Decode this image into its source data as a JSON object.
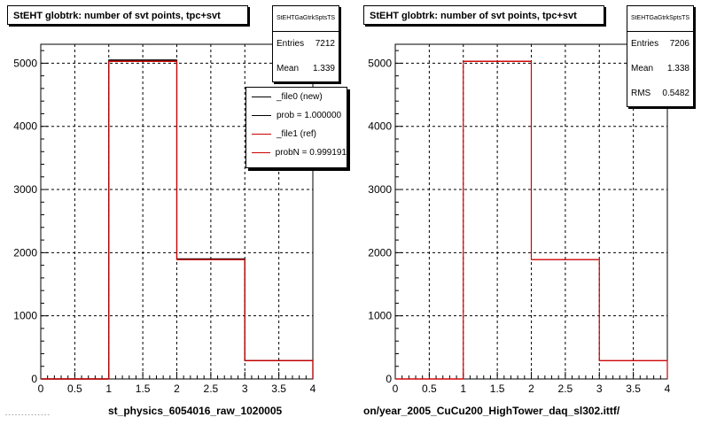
{
  "chart_data": [
    {
      "type": "bar",
      "title": "StEHT globtrk: number of svt points, tpc+svt",
      "xlabel": "st_physics_6054016_raw_1020005",
      "ylabel": "",
      "xlim": [
        0,
        4
      ],
      "ylim": [
        0,
        5300
      ],
      "grid": true,
      "x_ticks": [
        "0",
        "0.5",
        "1",
        "1.5",
        "2",
        "2.5",
        "3",
        "3.5",
        "4"
      ],
      "y_ticks": [
        "0",
        "1000",
        "2000",
        "3000",
        "4000",
        "5000"
      ],
      "bin_edges": [
        0,
        1,
        2,
        3,
        4
      ],
      "series": [
        {
          "name": "_file0 (new)",
          "color": "#000000",
          "values": [
            0,
            5050,
            1900,
            290
          ]
        },
        {
          "name": "_file1 (ref)",
          "color": "#cc0000",
          "values": [
            0,
            5030,
            1890,
            290
          ]
        }
      ],
      "stats": {
        "name": "StEHTGaGtrkSptsTS",
        "rows": [
          {
            "label": "Entries",
            "value": "7212"
          },
          {
            "label": "Mean",
            "value": "1.339"
          }
        ]
      },
      "legend": {
        "position": "top-right",
        "entries": [
          {
            "label": "_file0 (new)",
            "color": "#000000"
          },
          {
            "label": "prob = 1.000000",
            "color": "#000000"
          },
          {
            "label": "_file1 (ref)",
            "color": "#cc0000"
          },
          {
            "label": "probN = 0.999191",
            "color": "#cc0000"
          }
        ]
      }
    },
    {
      "type": "bar",
      "title": "StEHT globtrk: number of svt points, tpc+svt",
      "xlabel": "on/year_2005_CuCu200_HighTower_daq_sl302.ittf/",
      "ylabel": "",
      "xlim": [
        0,
        4
      ],
      "ylim": [
        0,
        5300
      ],
      "grid": true,
      "x_ticks": [
        "0",
        "0.5",
        "1",
        "1.5",
        "2",
        "2.5",
        "3",
        "3.5",
        "4"
      ],
      "y_ticks": [
        "0",
        "1000",
        "2000",
        "3000",
        "4000",
        "5000"
      ],
      "bin_edges": [
        0,
        1,
        2,
        3,
        4
      ],
      "series": [
        {
          "name": "",
          "color": "#cc0000",
          "values": [
            0,
            5030,
            1890,
            290
          ]
        }
      ],
      "stats": {
        "name": "StEHTGaGtrkSptsTS",
        "rows": [
          {
            "label": "Entries",
            "value": "7206"
          },
          {
            "label": "Mean",
            "value": "1.338"
          },
          {
            "label": "RMS",
            "value": "0.5482"
          }
        ]
      }
    }
  ]
}
